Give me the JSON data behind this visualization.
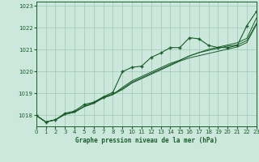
{
  "title": "Graphe pression niveau de la mer (hPa)",
  "background_color": "#cce8dc",
  "grid_color": "#9fc8b4",
  "line_color": "#1a5c2a",
  "xlim": [
    0,
    23
  ],
  "ylim": [
    1017.5,
    1023.2
  ],
  "yticks": [
    1018,
    1019,
    1020,
    1021,
    1022,
    1023
  ],
  "xticks": [
    0,
    1,
    2,
    3,
    4,
    5,
    6,
    7,
    8,
    9,
    10,
    11,
    12,
    13,
    14,
    15,
    16,
    17,
    18,
    19,
    20,
    21,
    22,
    23
  ],
  "series1": [
    1018.0,
    1017.7,
    1017.8,
    1018.1,
    1018.2,
    1018.5,
    1018.6,
    1018.85,
    1019.05,
    1020.0,
    1020.2,
    1020.25,
    1020.65,
    1020.85,
    1021.1,
    1021.1,
    1021.55,
    1021.5,
    1021.2,
    1021.1,
    1021.1,
    1021.2,
    1022.1,
    1022.75
  ],
  "series2": [
    1018.0,
    1017.7,
    1017.8,
    1018.05,
    1018.15,
    1018.42,
    1018.58,
    1018.82,
    1018.98,
    1019.22,
    1019.52,
    1019.72,
    1019.92,
    1020.12,
    1020.32,
    1020.52,
    1020.72,
    1020.87,
    1020.97,
    1021.07,
    1021.17,
    1021.22,
    1021.42,
    1022.2
  ],
  "series3": [
    1018.0,
    1017.7,
    1017.8,
    1018.05,
    1018.15,
    1018.4,
    1018.56,
    1018.8,
    1018.96,
    1019.18,
    1019.48,
    1019.68,
    1019.88,
    1020.08,
    1020.28,
    1020.48,
    1020.63,
    1020.73,
    1020.83,
    1020.93,
    1021.03,
    1021.13,
    1021.33,
    1022.15
  ],
  "series4": [
    1018.0,
    1017.7,
    1017.8,
    1018.05,
    1018.15,
    1018.4,
    1018.55,
    1018.8,
    1018.95,
    1019.28,
    1019.58,
    1019.78,
    1019.98,
    1020.18,
    1020.38,
    1020.52,
    1020.72,
    1020.87,
    1021.02,
    1021.12,
    1021.22,
    1021.32,
    1021.52,
    1022.45
  ]
}
